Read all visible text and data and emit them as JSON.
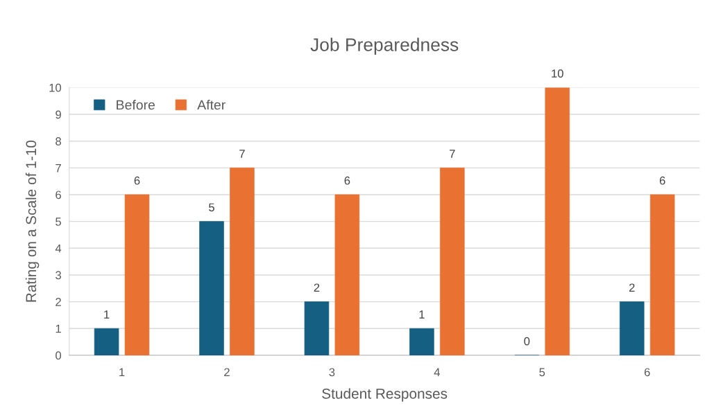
{
  "chart_data": {
    "type": "bar",
    "title": "Job Preparedness",
    "xlabel": "Student Responses",
    "ylabel": "Rating on a Scale of 1-10",
    "categories": [
      "1",
      "2",
      "3",
      "4",
      "5",
      "6"
    ],
    "series": [
      {
        "name": "Before",
        "color": "#156082",
        "values": [
          1,
          5,
          2,
          1,
          0,
          2
        ]
      },
      {
        "name": "After",
        "color": "#e97132",
        "values": [
          6,
          7,
          6,
          7,
          10,
          6
        ]
      }
    ],
    "ylim": [
      0,
      10
    ],
    "yticks": [
      0,
      1,
      2,
      3,
      4,
      5,
      6,
      7,
      8,
      9,
      10
    ],
    "grid": "y",
    "legend": "top left",
    "data_labels": true
  }
}
